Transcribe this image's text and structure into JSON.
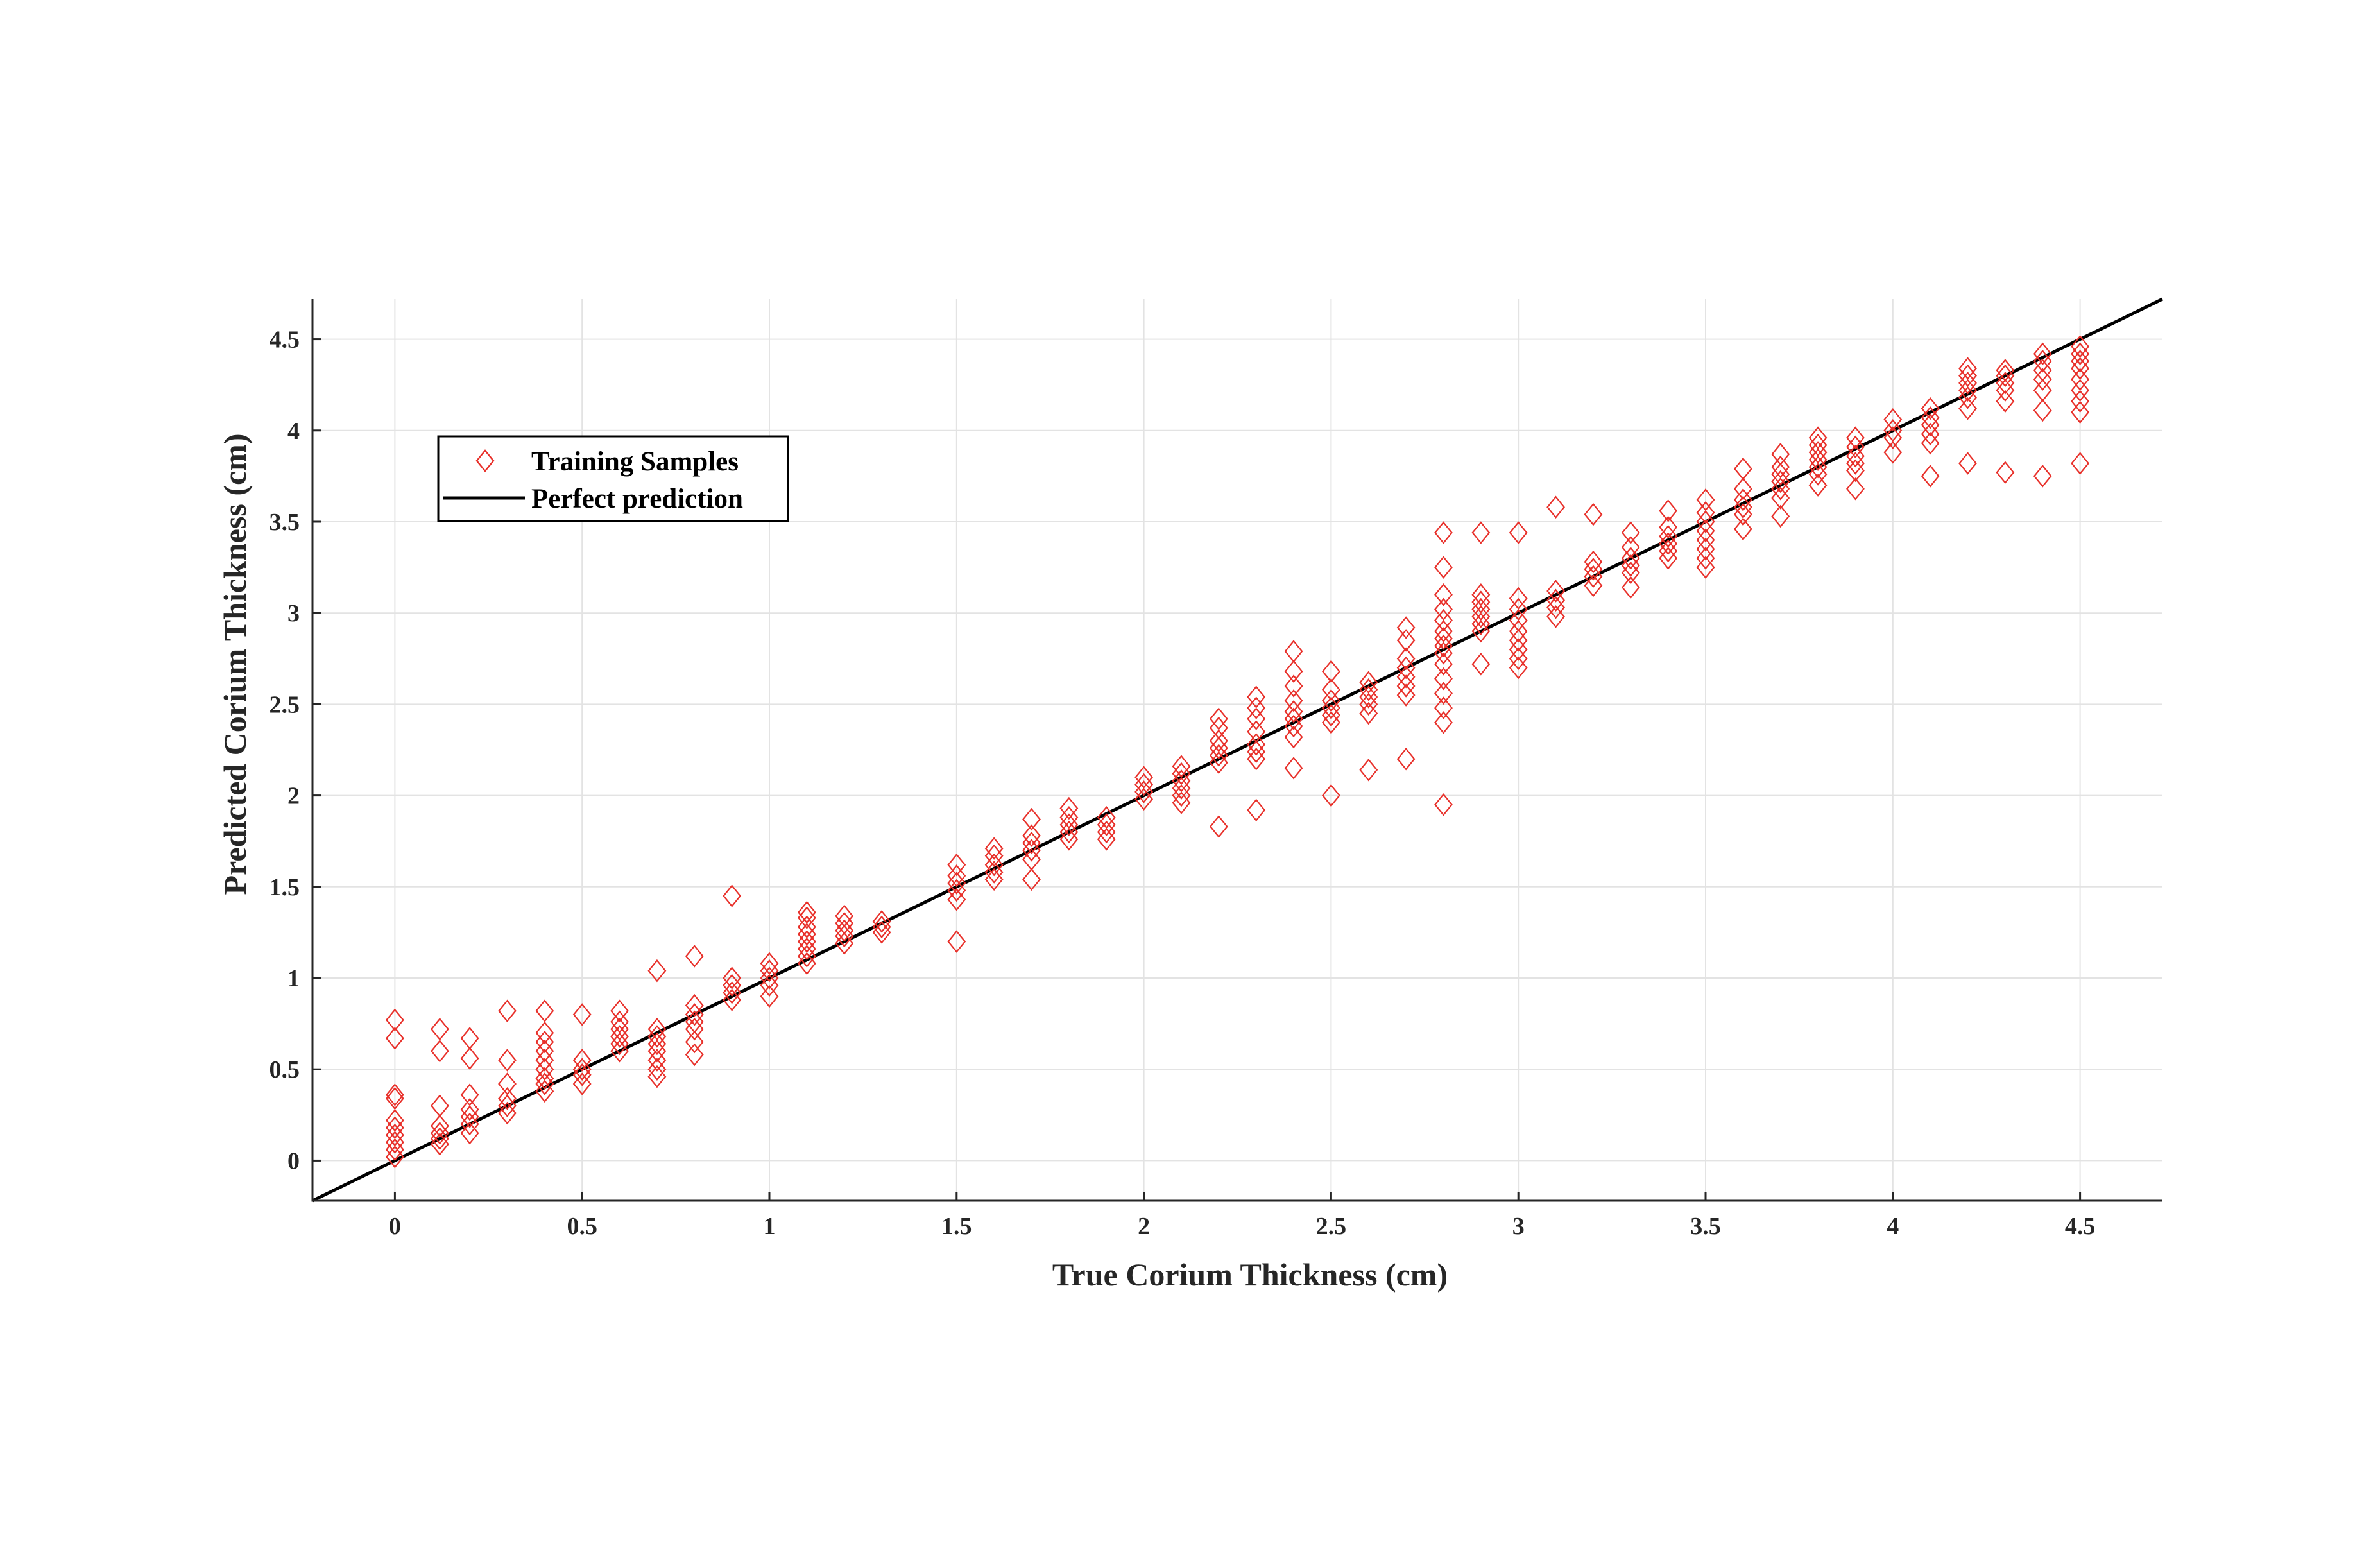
{
  "chart_data": {
    "type": "scatter",
    "xlabel": "True Corium Thickness (cm)",
    "ylabel": "Predicted Corium Thickness (cm)",
    "xlim": [
      -0.22,
      4.72
    ],
    "ylim": [
      -0.22,
      4.72
    ],
    "x_ticks": [
      0,
      0.5,
      1,
      1.5,
      2,
      2.5,
      3,
      3.5,
      4,
      4.5
    ],
    "y_ticks": [
      0,
      0.5,
      1,
      1.5,
      2,
      2.5,
      3,
      3.5,
      4,
      4.5
    ],
    "x_tick_labels": [
      "0",
      "0.5",
      "1",
      "1.5",
      "2",
      "2.5",
      "3",
      "3.5",
      "4",
      "4.5"
    ],
    "y_tick_labels": [
      "0",
      "0.5",
      "1",
      "1.5",
      "2",
      "2.5",
      "3",
      "3.5",
      "4",
      "4.5"
    ],
    "grid": true,
    "legend_position": "top-left",
    "colors": {
      "marker": "#e8302a",
      "line": "#000000",
      "axis": "#262626"
    },
    "series": [
      {
        "name": "Training Samples",
        "kind": "scatter",
        "marker": "diamond",
        "points": [
          [
            0,
            0.02
          ],
          [
            0,
            0.06
          ],
          [
            0,
            0.1
          ],
          [
            0,
            0.14
          ],
          [
            0,
            0.18
          ],
          [
            0,
            0.22
          ],
          [
            0,
            0.34
          ],
          [
            0,
            0.36
          ],
          [
            0,
            0.67
          ],
          [
            0,
            0.77
          ],
          [
            0.12,
            0.09
          ],
          [
            0.12,
            0.12
          ],
          [
            0.12,
            0.15
          ],
          [
            0.12,
            0.19
          ],
          [
            0.12,
            0.3
          ],
          [
            0.12,
            0.6
          ],
          [
            0.12,
            0.72
          ],
          [
            0.2,
            0.15
          ],
          [
            0.2,
            0.2
          ],
          [
            0.2,
            0.24
          ],
          [
            0.2,
            0.28
          ],
          [
            0.2,
            0.36
          ],
          [
            0.2,
            0.56
          ],
          [
            0.2,
            0.67
          ],
          [
            0.3,
            0.26
          ],
          [
            0.3,
            0.3
          ],
          [
            0.3,
            0.34
          ],
          [
            0.3,
            0.42
          ],
          [
            0.3,
            0.55
          ],
          [
            0.3,
            0.82
          ],
          [
            0.4,
            0.38
          ],
          [
            0.4,
            0.42
          ],
          [
            0.4,
            0.45
          ],
          [
            0.4,
            0.5
          ],
          [
            0.4,
            0.55
          ],
          [
            0.4,
            0.6
          ],
          [
            0.4,
            0.65
          ],
          [
            0.4,
            0.7
          ],
          [
            0.4,
            0.82
          ],
          [
            0.5,
            0.42
          ],
          [
            0.5,
            0.47
          ],
          [
            0.5,
            0.5
          ],
          [
            0.5,
            0.55
          ],
          [
            0.5,
            0.8
          ],
          [
            0.6,
            0.6
          ],
          [
            0.6,
            0.64
          ],
          [
            0.6,
            0.68
          ],
          [
            0.6,
            0.72
          ],
          [
            0.6,
            0.76
          ],
          [
            0.6,
            0.82
          ],
          [
            0.7,
            0.46
          ],
          [
            0.7,
            0.5
          ],
          [
            0.7,
            0.55
          ],
          [
            0.7,
            0.6
          ],
          [
            0.7,
            0.64
          ],
          [
            0.7,
            0.68
          ],
          [
            0.7,
            0.72
          ],
          [
            0.7,
            1.04
          ],
          [
            0.8,
            0.58
          ],
          [
            0.8,
            0.65
          ],
          [
            0.8,
            0.72
          ],
          [
            0.8,
            0.76
          ],
          [
            0.8,
            0.8
          ],
          [
            0.8,
            0.85
          ],
          [
            0.8,
            1.12
          ],
          [
            0.9,
            0.88
          ],
          [
            0.9,
            0.92
          ],
          [
            0.9,
            0.96
          ],
          [
            0.9,
            1.0
          ],
          [
            0.9,
            1.45
          ],
          [
            1.0,
            0.9
          ],
          [
            1.0,
            0.96
          ],
          [
            1.0,
            1.0
          ],
          [
            1.0,
            1.04
          ],
          [
            1.0,
            1.08
          ],
          [
            1.1,
            1.08
          ],
          [
            1.1,
            1.12
          ],
          [
            1.1,
            1.16
          ],
          [
            1.1,
            1.2
          ],
          [
            1.1,
            1.24
          ],
          [
            1.1,
            1.28
          ],
          [
            1.1,
            1.33
          ],
          [
            1.1,
            1.36
          ],
          [
            1.2,
            1.19
          ],
          [
            1.2,
            1.23
          ],
          [
            1.2,
            1.26
          ],
          [
            1.2,
            1.3
          ],
          [
            1.2,
            1.34
          ],
          [
            1.3,
            1.25
          ],
          [
            1.3,
            1.28
          ],
          [
            1.3,
            1.31
          ],
          [
            1.5,
            1.2
          ],
          [
            1.5,
            1.43
          ],
          [
            1.5,
            1.48
          ],
          [
            1.5,
            1.52
          ],
          [
            1.5,
            1.56
          ],
          [
            1.5,
            1.62
          ],
          [
            1.6,
            1.54
          ],
          [
            1.6,
            1.58
          ],
          [
            1.6,
            1.62
          ],
          [
            1.6,
            1.67
          ],
          [
            1.6,
            1.71
          ],
          [
            1.7,
            1.54
          ],
          [
            1.7,
            1.65
          ],
          [
            1.7,
            1.7
          ],
          [
            1.7,
            1.74
          ],
          [
            1.7,
            1.78
          ],
          [
            1.7,
            1.87
          ],
          [
            1.8,
            1.76
          ],
          [
            1.8,
            1.8
          ],
          [
            1.8,
            1.84
          ],
          [
            1.8,
            1.88
          ],
          [
            1.8,
            1.93
          ],
          [
            1.9,
            1.76
          ],
          [
            1.9,
            1.8
          ],
          [
            1.9,
            1.84
          ],
          [
            1.9,
            1.88
          ],
          [
            2.0,
            1.98
          ],
          [
            2.0,
            2.02
          ],
          [
            2.0,
            2.06
          ],
          [
            2.0,
            2.1
          ],
          [
            2.1,
            1.96
          ],
          [
            2.1,
            2.0
          ],
          [
            2.1,
            2.04
          ],
          [
            2.1,
            2.08
          ],
          [
            2.1,
            2.12
          ],
          [
            2.1,
            2.16
          ],
          [
            2.2,
            1.83
          ],
          [
            2.2,
            2.18
          ],
          [
            2.2,
            2.22
          ],
          [
            2.2,
            2.26
          ],
          [
            2.2,
            2.3
          ],
          [
            2.2,
            2.37
          ],
          [
            2.2,
            2.42
          ],
          [
            2.3,
            1.92
          ],
          [
            2.3,
            2.2
          ],
          [
            2.3,
            2.24
          ],
          [
            2.3,
            2.28
          ],
          [
            2.3,
            2.35
          ],
          [
            2.3,
            2.42
          ],
          [
            2.3,
            2.48
          ],
          [
            2.3,
            2.54
          ],
          [
            2.4,
            2.15
          ],
          [
            2.4,
            2.32
          ],
          [
            2.4,
            2.38
          ],
          [
            2.4,
            2.42
          ],
          [
            2.4,
            2.46
          ],
          [
            2.4,
            2.52
          ],
          [
            2.4,
            2.6
          ],
          [
            2.4,
            2.68
          ],
          [
            2.4,
            2.79
          ],
          [
            2.5,
            2.0
          ],
          [
            2.5,
            2.4
          ],
          [
            2.5,
            2.44
          ],
          [
            2.5,
            2.48
          ],
          [
            2.5,
            2.52
          ],
          [
            2.5,
            2.58
          ],
          [
            2.5,
            2.68
          ],
          [
            2.6,
            2.14
          ],
          [
            2.6,
            2.45
          ],
          [
            2.6,
            2.5
          ],
          [
            2.6,
            2.54
          ],
          [
            2.6,
            2.58
          ],
          [
            2.6,
            2.62
          ],
          [
            2.7,
            2.2
          ],
          [
            2.7,
            2.55
          ],
          [
            2.7,
            2.6
          ],
          [
            2.7,
            2.65
          ],
          [
            2.7,
            2.7
          ],
          [
            2.7,
            2.75
          ],
          [
            2.7,
            2.85
          ],
          [
            2.7,
            2.92
          ],
          [
            2.8,
            1.95
          ],
          [
            2.8,
            2.4
          ],
          [
            2.8,
            2.48
          ],
          [
            2.8,
            2.56
          ],
          [
            2.8,
            2.64
          ],
          [
            2.8,
            2.72
          ],
          [
            2.8,
            2.78
          ],
          [
            2.8,
            2.82
          ],
          [
            2.8,
            2.86
          ],
          [
            2.8,
            2.9
          ],
          [
            2.8,
            2.96
          ],
          [
            2.8,
            3.02
          ],
          [
            2.8,
            3.1
          ],
          [
            2.8,
            3.25
          ],
          [
            2.8,
            3.44
          ],
          [
            2.9,
            2.72
          ],
          [
            2.9,
            2.9
          ],
          [
            2.9,
            2.94
          ],
          [
            2.9,
            2.98
          ],
          [
            2.9,
            3.02
          ],
          [
            2.9,
            3.06
          ],
          [
            2.9,
            3.1
          ],
          [
            2.9,
            3.44
          ],
          [
            3.0,
            2.7
          ],
          [
            3.0,
            2.75
          ],
          [
            3.0,
            2.8
          ],
          [
            3.0,
            2.85
          ],
          [
            3.0,
            2.9
          ],
          [
            3.0,
            2.96
          ],
          [
            3.0,
            3.02
          ],
          [
            3.0,
            3.08
          ],
          [
            3.0,
            3.44
          ],
          [
            3.1,
            2.98
          ],
          [
            3.1,
            3.03
          ],
          [
            3.1,
            3.07
          ],
          [
            3.1,
            3.12
          ],
          [
            3.1,
            3.58
          ],
          [
            3.2,
            3.15
          ],
          [
            3.2,
            3.2
          ],
          [
            3.2,
            3.24
          ],
          [
            3.2,
            3.28
          ],
          [
            3.2,
            3.54
          ],
          [
            3.3,
            3.14
          ],
          [
            3.3,
            3.22
          ],
          [
            3.3,
            3.26
          ],
          [
            3.3,
            3.3
          ],
          [
            3.3,
            3.36
          ],
          [
            3.3,
            3.44
          ],
          [
            3.4,
            3.3
          ],
          [
            3.4,
            3.34
          ],
          [
            3.4,
            3.38
          ],
          [
            3.4,
            3.42
          ],
          [
            3.4,
            3.47
          ],
          [
            3.4,
            3.56
          ],
          [
            3.5,
            3.25
          ],
          [
            3.5,
            3.3
          ],
          [
            3.5,
            3.35
          ],
          [
            3.5,
            3.4
          ],
          [
            3.5,
            3.45
          ],
          [
            3.5,
            3.5
          ],
          [
            3.5,
            3.55
          ],
          [
            3.5,
            3.62
          ],
          [
            3.6,
            3.46
          ],
          [
            3.6,
            3.54
          ],
          [
            3.6,
            3.58
          ],
          [
            3.6,
            3.62
          ],
          [
            3.6,
            3.68
          ],
          [
            3.6,
            3.79
          ],
          [
            3.7,
            3.53
          ],
          [
            3.7,
            3.63
          ],
          [
            3.7,
            3.68
          ],
          [
            3.7,
            3.72
          ],
          [
            3.7,
            3.76
          ],
          [
            3.7,
            3.8
          ],
          [
            3.7,
            3.87
          ],
          [
            3.8,
            3.7
          ],
          [
            3.8,
            3.76
          ],
          [
            3.8,
            3.8
          ],
          [
            3.8,
            3.84
          ],
          [
            3.8,
            3.88
          ],
          [
            3.8,
            3.92
          ],
          [
            3.8,
            3.96
          ],
          [
            3.9,
            3.68
          ],
          [
            3.9,
            3.78
          ],
          [
            3.9,
            3.82
          ],
          [
            3.9,
            3.86
          ],
          [
            3.9,
            3.91
          ],
          [
            3.9,
            3.96
          ],
          [
            4.0,
            3.88
          ],
          [
            4.0,
            3.96
          ],
          [
            4.0,
            4.0
          ],
          [
            4.0,
            4.06
          ],
          [
            4.1,
            3.75
          ],
          [
            4.1,
            3.93
          ],
          [
            4.1,
            3.98
          ],
          [
            4.1,
            4.03
          ],
          [
            4.1,
            4.07
          ],
          [
            4.1,
            4.12
          ],
          [
            4.2,
            3.82
          ],
          [
            4.2,
            4.12
          ],
          [
            4.2,
            4.18
          ],
          [
            4.2,
            4.22
          ],
          [
            4.2,
            4.26
          ],
          [
            4.2,
            4.3
          ],
          [
            4.2,
            4.34
          ],
          [
            4.3,
            3.77
          ],
          [
            4.3,
            4.16
          ],
          [
            4.3,
            4.22
          ],
          [
            4.3,
            4.26
          ],
          [
            4.3,
            4.3
          ],
          [
            4.3,
            4.33
          ],
          [
            4.4,
            3.75
          ],
          [
            4.4,
            4.11
          ],
          [
            4.4,
            4.22
          ],
          [
            4.4,
            4.28
          ],
          [
            4.4,
            4.33
          ],
          [
            4.4,
            4.38
          ],
          [
            4.4,
            4.42
          ],
          [
            4.5,
            3.82
          ],
          [
            4.5,
            4.1
          ],
          [
            4.5,
            4.16
          ],
          [
            4.5,
            4.22
          ],
          [
            4.5,
            4.28
          ],
          [
            4.5,
            4.34
          ],
          [
            4.5,
            4.38
          ],
          [
            4.5,
            4.42
          ],
          [
            4.5,
            4.46
          ]
        ]
      },
      {
        "name": "Perfect prediction",
        "kind": "line",
        "points": [
          [
            -0.22,
            -0.22
          ],
          [
            4.72,
            4.72
          ]
        ]
      }
    ]
  }
}
